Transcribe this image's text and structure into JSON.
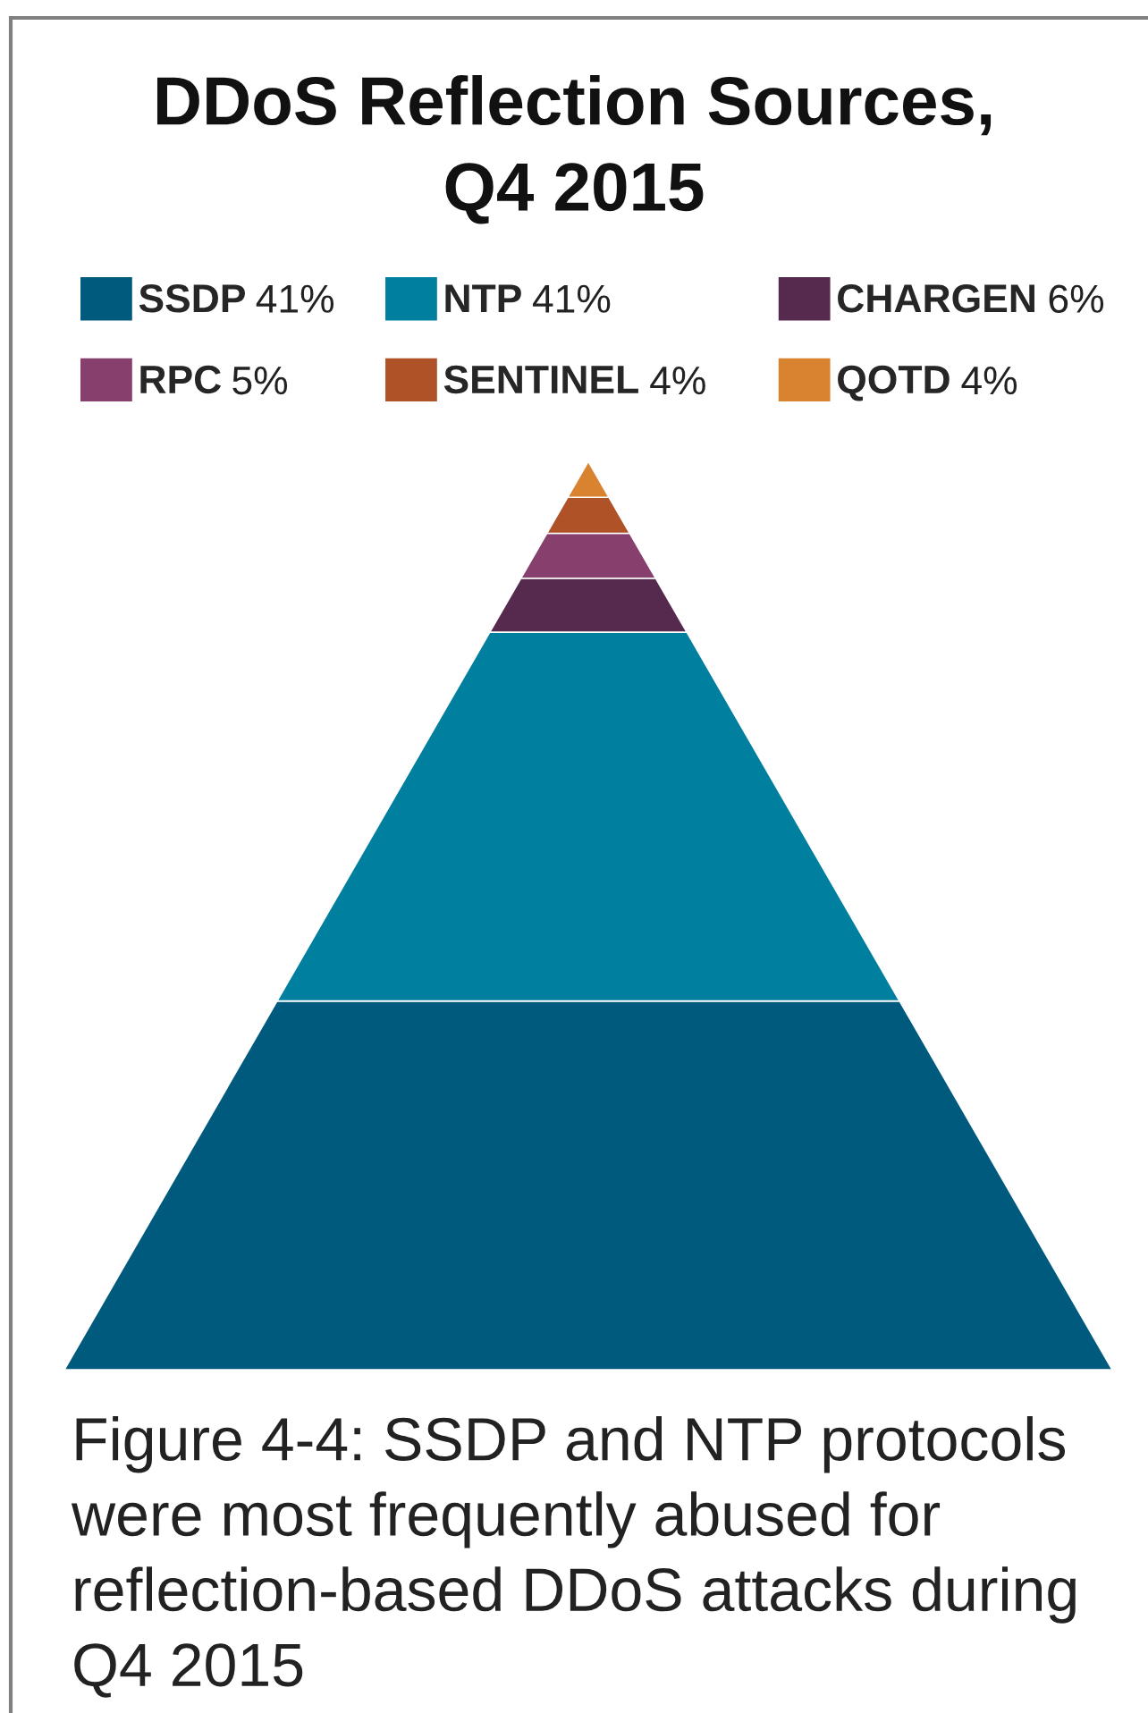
{
  "chart_data": {
    "type": "other",
    "title": "DDoS Reflection Sources,\nQ4 2015",
    "categories": [
      "SSDP",
      "NTP",
      "CHARGEN",
      "RPC",
      "SENTINEL",
      "QOTD"
    ],
    "values": [
      41,
      41,
      6,
      5,
      4,
      4
    ],
    "value_labels": [
      "41%",
      "41%",
      "6%",
      "5%",
      "4%",
      "4%"
    ],
    "colors": [
      "#005a7e",
      "#007f9f",
      "#56294e",
      "#87406d",
      "#b05228",
      "#d98330"
    ],
    "annotations": [
      "Figure 4-4: SSDP and NTP protocols were most frequently abused for reflection-based DDoS attacks during Q4 2015"
    ]
  }
}
